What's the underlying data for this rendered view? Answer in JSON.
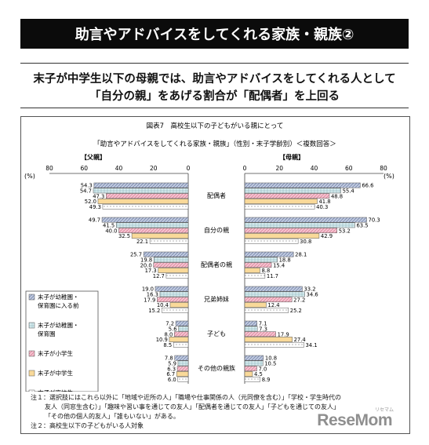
{
  "header": {
    "title": "助言やアドバイスをしてくれる家族・親族②"
  },
  "headline": {
    "line1": "末子が中学生以下の母親では、助言やアドバイスをしてくれる人として",
    "line2": "「自分の親」をあげる割合が「配偶者」を上回る"
  },
  "figure": {
    "label": "図表7　高校生以下の子どもがいる親にとって"
  },
  "notes": {
    "line1": "注１：選択肢にはこれら以外に「地域や近所の人」「職場や仕事関係の人（元同僚を含む）」「学校・学生時代の",
    "line2": "友人（同窓生含む）」「趣味や習い事を通じての友人」「配偶者を通じての友人」「子どもを通じての友人」",
    "line3": "「その他の個人的友人」「誰もいない」がある。",
    "line4": "注２：高校生以下の子どもがいる人対象"
  },
  "logo": {
    "text": "ReseMom",
    "sub": "リセマム"
  },
  "chart_data": {
    "type": "bar",
    "orientation": "horizontal-butterfly",
    "title": "「助言やアドバイスをしてくれる家族・親族」（性別・末子学齢別）＜複数回答＞",
    "unit_left": "(%)",
    "unit_right": "(%)",
    "left_panel": "【父親】",
    "right_panel": "【母親】",
    "xlim": [
      0,
      80
    ],
    "ticks": [
      "80",
      "60",
      "40",
      "20",
      "0",
      "0",
      "20",
      "40",
      "60",
      "80"
    ],
    "categories": [
      "配偶者",
      "自分の親",
      "配偶者の親",
      "兄弟姉妹",
      "子ども",
      "その他の親族"
    ],
    "legend_position": "left",
    "series": [
      {
        "name": "末子が幼稚園・保育園に入る前",
        "legend_lines": [
          "末子が幼稚園・",
          "保育園に入る前"
        ],
        "color": "#bfc9df",
        "pattern": "hatch",
        "father": [
          54.3,
          49.7,
          25.7,
          19.0,
          7.2,
          7.8
        ],
        "mother": [
          66.6,
          70.3,
          28.1,
          33.2,
          7.1,
          10.8
        ]
      },
      {
        "name": "末子が幼稚園・保育園",
        "legend_lines": [
          "末子が幼稚園・",
          "保育園"
        ],
        "color": "#d7ecef",
        "pattern": "grid",
        "father": [
          54.7,
          41.5,
          19.8,
          16.3,
          5.6,
          5.9
        ],
        "mother": [
          55.4,
          63.5,
          18.8,
          34.6,
          7.3,
          10.5
        ]
      },
      {
        "name": "末子が小学生",
        "legend_lines": [
          "末子が小学生"
        ],
        "color": "#f6c1cf",
        "pattern": "diag",
        "father": [
          47.3,
          40.0,
          20.0,
          17.9,
          8.0,
          6.3
        ],
        "mother": [
          48.8,
          53.2,
          15.4,
          27.2,
          17.9,
          7.0
        ]
      },
      {
        "name": "末子が中学生",
        "legend_lines": [
          "末子が中学生"
        ],
        "color": "#f9d999",
        "pattern": "solid",
        "father": [
          52.0,
          32.5,
          17.3,
          10.4,
          10.9,
          6.7
        ],
        "mother": [
          41.8,
          42.9,
          8.8,
          12.4,
          27.4,
          4.5
        ]
      },
      {
        "name": "末子が高校生",
        "legend_lines": [
          "末子が高校生"
        ],
        "color": "#ffffff",
        "pattern": "dots",
        "father": [
          49.3,
          22.1,
          12.7,
          15.2,
          8.5,
          6.0
        ],
        "mother": [
          40.3,
          30.8,
          11.7,
          25.2,
          34.1,
          8.9
        ]
      }
    ]
  }
}
